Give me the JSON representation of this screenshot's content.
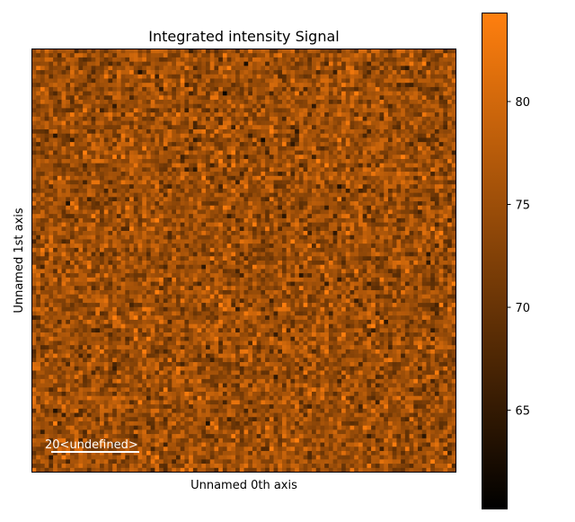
{
  "chart_data": {
    "type": "heatmap",
    "title": "Integrated intensity Signal",
    "xlabel": "Unnamed 0th axis",
    "ylabel": "Unnamed 1st axis",
    "grid": false,
    "colormap": {
      "low": "#000000",
      "high": "#ff7f0e"
    },
    "color_range": [
      60.2,
      84.3
    ],
    "colorbar_ticks": [
      {
        "value": 65,
        "label": "65"
      },
      {
        "value": 70,
        "label": "70"
      },
      {
        "value": 75,
        "label": "75"
      },
      {
        "value": 80,
        "label": "80"
      }
    ],
    "matrix_shape": [
      100,
      100
    ],
    "value_distribution": {
      "mean": 75,
      "std": 3.5,
      "pattern": "uniform random noise"
    },
    "scalebar": {
      "value": "20",
      "unit": "<undefined>",
      "color": "#ffffff",
      "placement": "bottom-left"
    }
  }
}
